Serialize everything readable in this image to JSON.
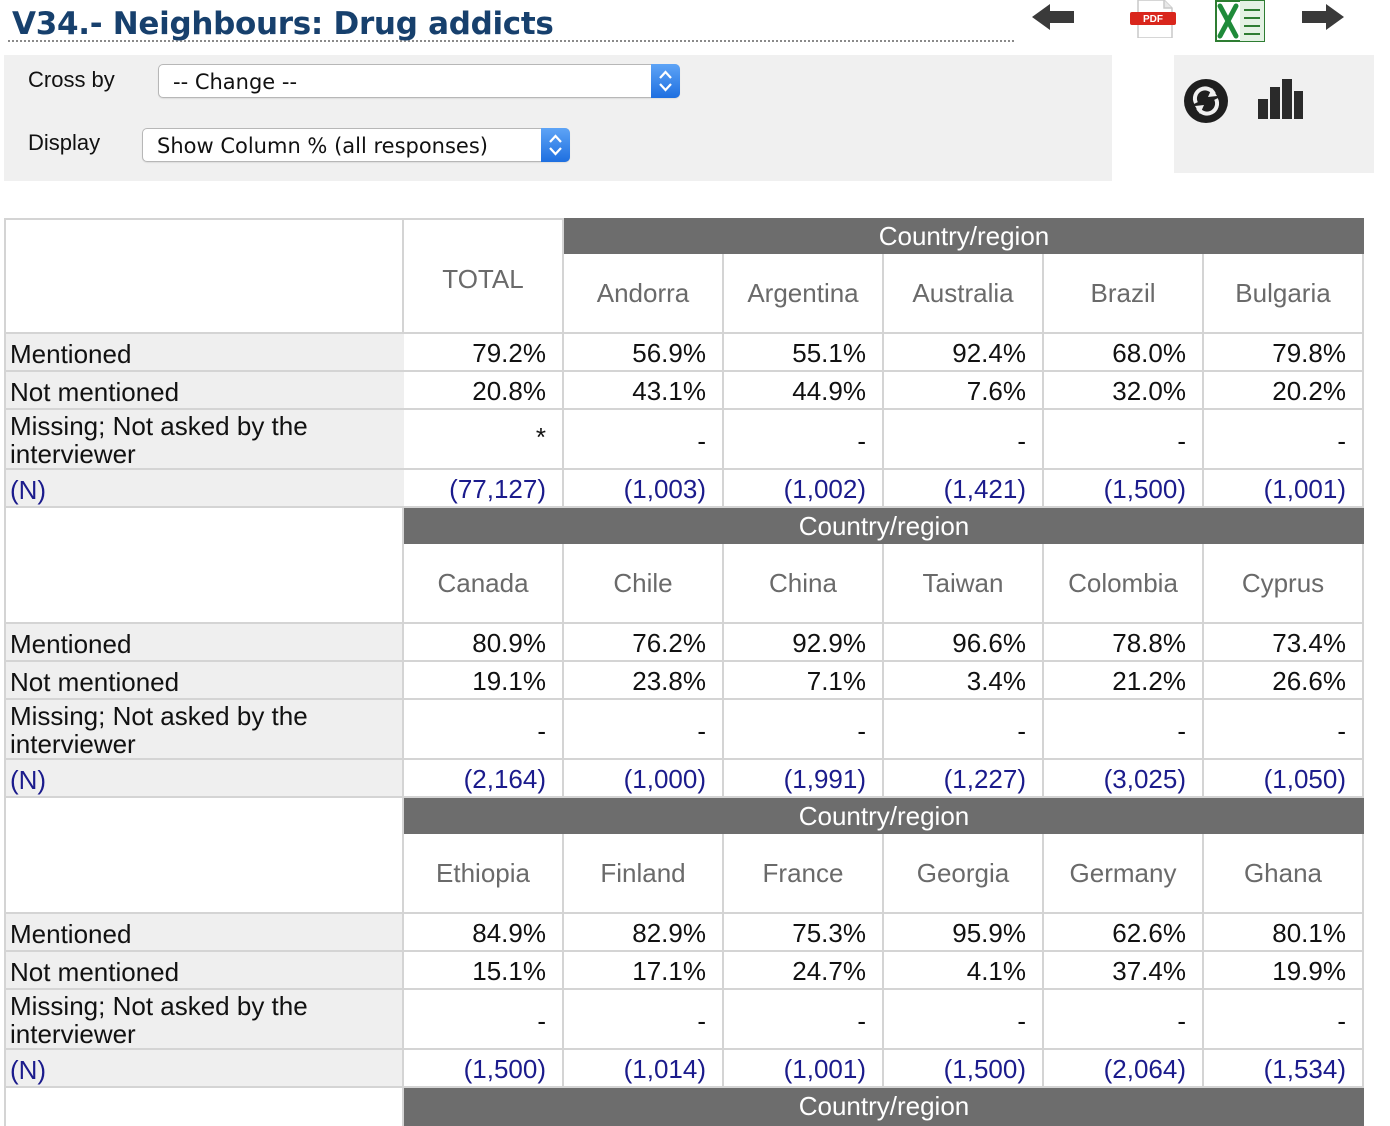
{
  "title": "V34.- Neighbours: Drug addicts",
  "toolbar": {
    "back_icon": "arrow-left-icon",
    "pdf_icon": "pdf-icon",
    "pdf_label": "PDF",
    "excel_icon": "excel-icon",
    "forward_icon": "arrow-right-icon",
    "refresh_icon": "refresh-icon",
    "chart_icon": "bar-chart-icon"
  },
  "controls": {
    "cross_by_label": "Cross by",
    "cross_by_value": "-- Change --",
    "display_label": "Display",
    "display_value": "Show Column % (all responses)"
  },
  "table": {
    "total_label": "TOTAL",
    "group_label": "Country/region",
    "row_labels": [
      "Mentioned",
      "Not mentioned",
      "Missing; Not asked by the interviewer",
      "(N)"
    ],
    "blocks": [
      {
        "columns": [
          "Andorra",
          "Argentina",
          "Australia",
          "Brazil",
          "Bulgaria"
        ],
        "total": [
          "79.2%",
          "20.8%",
          "*",
          "(77,127)"
        ],
        "rows": [
          [
            "56.9%",
            "55.1%",
            "92.4%",
            "68.0%",
            "79.8%"
          ],
          [
            "43.1%",
            "44.9%",
            "7.6%",
            "32.0%",
            "20.2%"
          ],
          [
            "-",
            "-",
            "-",
            "-",
            "-"
          ],
          [
            "(1,003)",
            "(1,002)",
            "(1,421)",
            "(1,500)",
            "(1,001)"
          ]
        ]
      },
      {
        "columns": [
          "Canada",
          "Chile",
          "China",
          "Taiwan",
          "Colombia",
          "Cyprus"
        ],
        "rows": [
          [
            "80.9%",
            "76.2%",
            "92.9%",
            "96.6%",
            "78.8%",
            "73.4%"
          ],
          [
            "19.1%",
            "23.8%",
            "7.1%",
            "3.4%",
            "21.2%",
            "26.6%"
          ],
          [
            "-",
            "-",
            "-",
            "-",
            "-",
            "-"
          ],
          [
            "(2,164)",
            "(1,000)",
            "(1,991)",
            "(1,227)",
            "(3,025)",
            "(1,050)"
          ]
        ]
      },
      {
        "columns": [
          "Ethiopia",
          "Finland",
          "France",
          "Georgia",
          "Germany",
          "Ghana"
        ],
        "rows": [
          [
            "84.9%",
            "82.9%",
            "75.3%",
            "95.9%",
            "62.6%",
            "80.1%"
          ],
          [
            "15.1%",
            "17.1%",
            "24.7%",
            "4.1%",
            "37.4%",
            "19.9%"
          ],
          [
            "-",
            "-",
            "-",
            "-",
            "-",
            "-"
          ],
          [
            "(1,500)",
            "(1,014)",
            "(1,001)",
            "(1,500)",
            "(2,064)",
            "(1,534)"
          ]
        ]
      }
    ]
  }
}
